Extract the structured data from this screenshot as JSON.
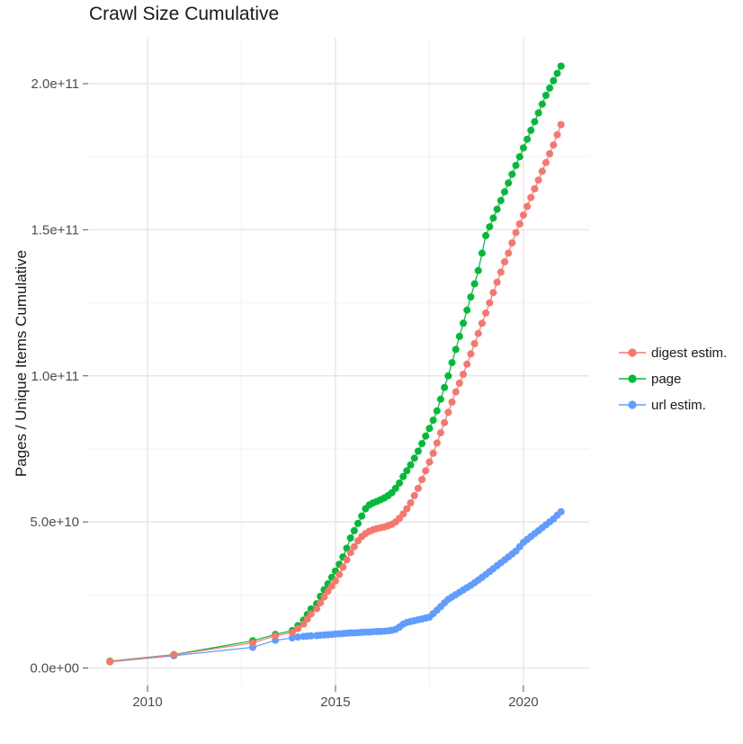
{
  "title": "Crawl Size Cumulative",
  "axes": {
    "y_label": "Pages / Unique Items Cumulative",
    "x_ticks": [
      {
        "label": "2010",
        "value": 2010
      },
      {
        "label": "2015",
        "value": 2015
      },
      {
        "label": "2020",
        "value": 2020
      }
    ],
    "y_ticks": [
      {
        "label": "0.0e+00",
        "value": 0
      },
      {
        "label": "5.0e+10",
        "value": 50000000000.0
      },
      {
        "label": "1.0e+11",
        "value": 100000000000.0
      },
      {
        "label": "1.5e+11",
        "value": 150000000000.0
      },
      {
        "label": "2.0e+11",
        "value": 200000000000.0
      }
    ],
    "x_minor": [
      2012.5,
      2017.5
    ],
    "y_minor": [
      25000000000.0,
      75000000000.0,
      125000000000.0,
      175000000000.0
    ]
  },
  "legend": {
    "items": [
      {
        "label": "digest estim.",
        "color": "#F8766D"
      },
      {
        "label": "page",
        "color": "#00BA38"
      },
      {
        "label": "url estim.",
        "color": "#619CFF"
      }
    ]
  },
  "colors": {
    "background": "#FFFFFF",
    "grid_major": "#E6E6E6",
    "grid_minor": "#F2F2F2",
    "tick": "#555555",
    "tick_label": "#4D4D4D",
    "text": "#1A1A1A",
    "digest": "#F8766D",
    "page": "#00BA38",
    "url": "#619CFF"
  },
  "chart_data": {
    "type": "line",
    "title": "Crawl Size Cumulative",
    "xlabel": "",
    "ylabel": "Pages / Unique Items Cumulative",
    "xlim": [
      2008.42,
      2021.75
    ],
    "ylim": [
      -6000000000.0,
      215700000000.0
    ],
    "x_tick_values": [
      2010,
      2015,
      2020
    ],
    "y_tick_values": [
      0,
      50000000000.0,
      100000000000.0,
      150000000000.0,
      200000000000.0
    ],
    "grid": true,
    "legend_position": "right",
    "marker": "point",
    "x": [
      2009,
      2010.7,
      2012.8,
      2013.4,
      2013.85,
      2014,
      2014.15,
      2014.25,
      2014.35,
      2014.5,
      2014.6,
      2014.7,
      2014.8,
      2014.9,
      2015,
      2015.1,
      2015.2,
      2015.3,
      2015.4,
      2015.5,
      2015.6,
      2015.7,
      2015.8,
      2015.9,
      2016,
      2016.1,
      2016.2,
      2016.3,
      2016.4,
      2016.5,
      2016.6,
      2016.7,
      2016.8,
      2016.9,
      2017,
      2017.1,
      2017.2,
      2017.3,
      2017.4,
      2017.5,
      2017.6,
      2017.7,
      2017.8,
      2017.9,
      2018,
      2018.1,
      2018.2,
      2018.3,
      2018.4,
      2018.5,
      2018.6,
      2018.7,
      2018.8,
      2018.9,
      2019,
      2019.1,
      2019.2,
      2019.3,
      2019.4,
      2019.5,
      2019.6,
      2019.7,
      2019.8,
      2019.9,
      2020,
      2020.1,
      2020.2,
      2020.3,
      2020.4,
      2020.5,
      2020.6,
      2020.7,
      2020.8,
      2020.9,
      2021
    ],
    "series": [
      {
        "name": "digest estim.",
        "color": "#F8766D",
        "values": [
          2200000000.0,
          4500000000.0,
          8600000000.0,
          11000000000.0,
          12200000000.0,
          13500000000.0,
          15000000000.0,
          16800000000.0,
          18500000000.0,
          20300000000.0,
          22300000000.0,
          24300000000.0,
          26300000000.0,
          28000000000.0,
          29800000000.0,
          32000000000.0,
          34500000000.0,
          37000000000.0,
          39500000000.0,
          41500000000.0,
          43500000000.0,
          45000000000.0,
          46000000000.0,
          46800000000.0,
          47300000000.0,
          47700000000.0,
          48000000000.0,
          48300000000.0,
          48700000000.0,
          49200000000.0,
          50000000000.0,
          51200000000.0,
          52700000000.0,
          54500000000.0,
          56500000000.0,
          59000000000.0,
          61500000000.0,
          64500000000.0,
          67500000000.0,
          70500000000.0,
          73500000000.0,
          77000000000.0,
          80500000000.0,
          84000000000.0,
          87500000000.0,
          91000000000.0,
          94500000000.0,
          97500000000.0,
          100500000000.0,
          104000000000.0,
          107500000000.0,
          111000000000.0,
          114500000000.0,
          118000000000.0,
          121500000000.0,
          125000000000.0,
          128500000000.0,
          132000000000.0,
          135500000000.0,
          139000000000.0,
          142000000000.0,
          145500000000.0,
          149000000000.0,
          152000000000.0,
          155000000000.0,
          158000000000.0,
          161000000000.0,
          164000000000.0,
          167000000000.0,
          170000000000.0,
          173000000000.0,
          176000000000.0,
          179000000000.0,
          182500000000.0,
          186000000000.0
        ]
      },
      {
        "name": "page",
        "color": "#00BA38",
        "values": [
          2300000000.0,
          4600000000.0,
          9300000000.0,
          11500000000.0,
          12800000000.0,
          14500000000.0,
          16400000000.0,
          18300000000.0,
          20200000000.0,
          22000000000.0,
          24500000000.0,
          26800000000.0,
          28800000000.0,
          31000000000.0,
          33200000000.0,
          35500000000.0,
          38000000000.0,
          41000000000.0,
          44500000000.0,
          47000000000.0,
          49500000000.0,
          52000000000.0,
          54500000000.0,
          55800000000.0,
          56500000000.0,
          57000000000.0,
          57600000000.0,
          58200000000.0,
          59000000000.0,
          60000000000.0,
          61500000000.0,
          63300000000.0,
          65500000000.0,
          67500000000.0,
          69500000000.0,
          71800000000.0,
          74200000000.0,
          76800000000.0,
          79400000000.0,
          82000000000.0,
          84800000000.0,
          88000000000.0,
          92000000000.0,
          96000000000.0,
          100000000000.0,
          104500000000.0,
          109000000000.0,
          113500000000.0,
          118000000000.0,
          122500000000.0,
          127000000000.0,
          131500000000.0,
          136000000000.0,
          142000000000.0,
          148000000000.0,
          151000000000.0,
          154000000000.0,
          157000000000.0,
          160000000000.0,
          163000000000.0,
          166000000000.0,
          169000000000.0,
          172000000000.0,
          175000000000.0,
          178000000000.0,
          181000000000.0,
          184000000000.0,
          187000000000.0,
          190000000000.0,
          193000000000.0,
          196000000000.0,
          198500000000.0,
          201000000000.0,
          203500000000.0,
          206000000000.0
        ]
      },
      {
        "name": "url estim.",
        "color": "#619CFF",
        "values": [
          2100000000.0,
          4200000000.0,
          7100000000.0,
          9500000000.0,
          10300000000.0,
          10600000000.0,
          10800000000.0,
          10900000000.0,
          11000000000.0,
          11100000000.0,
          11200000000.0,
          11300000000.0,
          11400000000.0,
          11500000000.0,
          11600000000.0,
          11700000000.0,
          11800000000.0,
          11900000000.0,
          12000000000.0,
          12000000000.0,
          12100000000.0,
          12200000000.0,
          12300000000.0,
          12300000000.0,
          12400000000.0,
          12500000000.0,
          12500000000.0,
          12600000000.0,
          12700000000.0,
          12900000000.0,
          13200000000.0,
          14000000000.0,
          15000000000.0,
          15600000000.0,
          15900000000.0,
          16200000000.0,
          16500000000.0,
          16800000000.0,
          17100000000.0,
          17400000000.0,
          18600000000.0,
          19800000000.0,
          21000000000.0,
          22300000000.0,
          23500000000.0,
          24300000000.0,
          25100000000.0,
          25900000000.0,
          26700000000.0,
          27500000000.0,
          28300000000.0,
          29200000000.0,
          30100000000.0,
          31000000000.0,
          32000000000.0,
          33000000000.0,
          34000000000.0,
          35000000000.0,
          36000000000.0,
          37000000000.0,
          38000000000.0,
          39000000000.0,
          40000000000.0,
          41500000000.0,
          43000000000.0,
          44000000000.0,
          45000000000.0,
          46000000000.0,
          47000000000.0,
          48000000000.0,
          49000000000.0,
          50000000000.0,
          51000000000.0,
          52300000000.0,
          53500000000.0
        ]
      }
    ]
  }
}
